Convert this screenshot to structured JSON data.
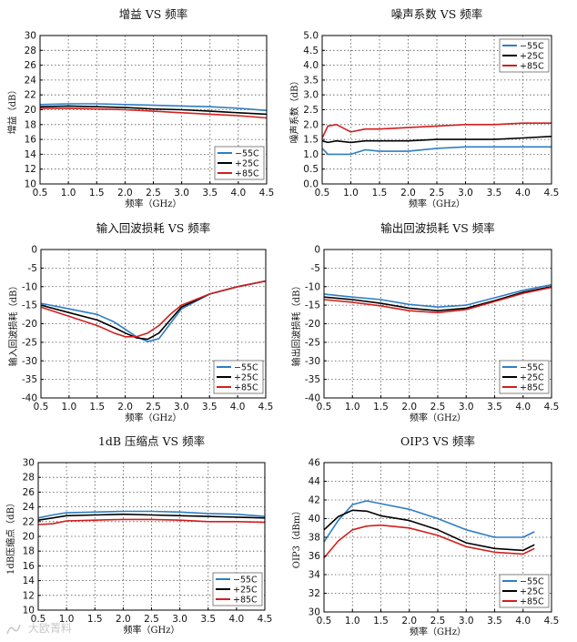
{
  "watermark": "大欧菁料",
  "legend_names": [
    "−55C",
    "+25C",
    "+85C"
  ],
  "series_colors": [
    "#2e7dc5",
    "#000000",
    "#d21f1f"
  ],
  "chart_data": [
    {
      "type": "line",
      "title": "增益 VS 频率",
      "xlabel": "频率（GHz）",
      "ylabel": "增益（dB）",
      "xlim": [
        0.5,
        4.5
      ],
      "ylim": [
        10,
        30
      ],
      "xticks": [
        "0.5",
        "1.0",
        "1.5",
        "2.0",
        "2.5",
        "3.0",
        "3.5",
        "4.0",
        "4.5"
      ],
      "yticks": [
        "10",
        "12",
        "14",
        "16",
        "18",
        "20",
        "22",
        "24",
        "26",
        "28",
        "30"
      ],
      "grid": true,
      "legend": "bottom-right",
      "x": [
        0.5,
        1.0,
        1.5,
        2.0,
        2.5,
        3.0,
        3.5,
        4.0,
        4.5
      ],
      "series": [
        {
          "name": "−55C",
          "values": [
            20.7,
            20.8,
            20.8,
            20.7,
            20.6,
            20.5,
            20.4,
            20.2,
            19.9
          ]
        },
        {
          "name": "+25C",
          "values": [
            20.4,
            20.5,
            20.4,
            20.3,
            20.1,
            20.0,
            19.8,
            19.6,
            19.4
          ]
        },
        {
          "name": "+85C",
          "values": [
            20.2,
            20.2,
            20.1,
            20.0,
            19.8,
            19.6,
            19.4,
            19.2,
            18.9
          ]
        }
      ]
    },
    {
      "type": "line",
      "title": "噪声系数 VS 频率",
      "xlabel": "频率（GHz）",
      "ylabel": "噪声系数（dB）",
      "xlim": [
        0.5,
        4.5
      ],
      "ylim": [
        0.0,
        5.0
      ],
      "xticks": [
        "0.5",
        "1.0",
        "1.5",
        "2.0",
        "2.5",
        "3.0",
        "3.5",
        "4.0",
        "4.5"
      ],
      "yticks": [
        "0.0",
        "0.5",
        "1.0",
        "1.5",
        "2.0",
        "2.5",
        "3.0",
        "3.5",
        "4.0",
        "4.5",
        "5.0"
      ],
      "grid": true,
      "legend": "top-right",
      "x": [
        0.5,
        0.6,
        0.75,
        1.0,
        1.25,
        1.5,
        2.0,
        2.5,
        3.0,
        3.5,
        4.0,
        4.5
      ],
      "series": [
        {
          "name": "−55C",
          "values": [
            1.2,
            1.0,
            1.0,
            1.0,
            1.15,
            1.1,
            1.1,
            1.2,
            1.25,
            1.25,
            1.25,
            1.25
          ]
        },
        {
          "name": "+25C",
          "values": [
            1.45,
            1.4,
            1.45,
            1.4,
            1.45,
            1.45,
            1.45,
            1.5,
            1.5,
            1.5,
            1.55,
            1.6
          ]
        },
        {
          "name": "+85C",
          "values": [
            1.55,
            1.95,
            2.0,
            1.75,
            1.85,
            1.85,
            1.9,
            1.95,
            2.0,
            2.0,
            2.05,
            2.05
          ]
        }
      ]
    },
    {
      "type": "line",
      "title": "输入回波损耗 VS 频率",
      "xlabel": "频率（GHz）",
      "ylabel": "输入回波损耗（dB）",
      "xlim": [
        0.5,
        4.5
      ],
      "ylim": [
        -40,
        0
      ],
      "xticks": [
        "0.5",
        "1.0",
        "1.5",
        "2.0",
        "2.5",
        "3.0",
        "3.5",
        "4.0",
        "4.5"
      ],
      "yticks": [
        "-40",
        "-35",
        "-30",
        "-25",
        "-20",
        "-15",
        "-10",
        "-5",
        "0"
      ],
      "grid": true,
      "legend": "bottom-right",
      "x": [
        0.5,
        1.0,
        1.5,
        1.8,
        2.0,
        2.2,
        2.4,
        2.6,
        2.8,
        3.0,
        3.5,
        4.0,
        4.5
      ],
      "series": [
        {
          "name": "−55C",
          "values": [
            -14.5,
            -16.0,
            -17.5,
            -19.5,
            -21.5,
            -23.5,
            -24.8,
            -24.0,
            -20.0,
            -16.0,
            -12.0,
            -10.0,
            -8.5
          ]
        },
        {
          "name": "+25C",
          "values": [
            -15.0,
            -17.0,
            -19.0,
            -21.0,
            -22.5,
            -23.8,
            -24.2,
            -22.5,
            -19.0,
            -15.5,
            -12.0,
            -10.0,
            -8.5
          ]
        },
        {
          "name": "+85C",
          "values": [
            -15.5,
            -18.0,
            -20.5,
            -22.5,
            -23.5,
            -23.5,
            -22.5,
            -20.5,
            -17.5,
            -15.0,
            -12.0,
            -10.0,
            -8.5
          ]
        }
      ]
    },
    {
      "type": "line",
      "title": "输出回波损耗 VS 频率",
      "xlabel": "频率（GHz）",
      "ylabel": "输出回波损耗（dB）",
      "xlim": [
        0.5,
        4.5
      ],
      "ylim": [
        -40,
        0
      ],
      "xticks": [
        "0.5",
        "1.0",
        "1.5",
        "2.0",
        "2.5",
        "3.0",
        "3.5",
        "4.0",
        "4.5"
      ],
      "yticks": [
        "-40",
        "-35",
        "-30",
        "-25",
        "-20",
        "-15",
        "-10",
        "-5",
        "0"
      ],
      "grid": true,
      "legend": "bottom-right",
      "x": [
        0.5,
        1.0,
        1.5,
        2.0,
        2.5,
        3.0,
        3.5,
        4.0,
        4.5
      ],
      "series": [
        {
          "name": "−55C",
          "values": [
            -12.0,
            -12.8,
            -13.5,
            -14.8,
            -15.5,
            -15.0,
            -13.0,
            -11.0,
            -9.5
          ]
        },
        {
          "name": "+25C",
          "values": [
            -12.8,
            -13.5,
            -14.5,
            -15.8,
            -16.5,
            -15.8,
            -13.8,
            -11.5,
            -10.0
          ]
        },
        {
          "name": "+85C",
          "values": [
            -13.5,
            -14.2,
            -15.2,
            -16.5,
            -17.0,
            -16.2,
            -14.0,
            -11.8,
            -10.2
          ]
        }
      ]
    },
    {
      "type": "line",
      "title": "1dB 压缩点 VS 频率",
      "xlabel": "频率（GHz）",
      "ylabel": "1dB压缩点（dB）",
      "xlim": [
        0.5,
        4.5
      ],
      "ylim": [
        10,
        30
      ],
      "xticks": [
        "0.5",
        "1.0",
        "1.5",
        "2.0",
        "2.5",
        "3.0",
        "3.5",
        "4.0",
        "4.5"
      ],
      "yticks": [
        "10",
        "12",
        "14",
        "16",
        "18",
        "20",
        "22",
        "24",
        "26",
        "28",
        "30"
      ],
      "grid": true,
      "legend": "bottom-right",
      "x": [
        0.5,
        0.75,
        1.0,
        1.5,
        2.0,
        2.5,
        3.0,
        3.5,
        4.0,
        4.5
      ],
      "series": [
        {
          "name": "−55C",
          "values": [
            22.5,
            22.9,
            23.2,
            23.3,
            23.4,
            23.4,
            23.3,
            23.1,
            23.0,
            22.7
          ]
        },
        {
          "name": "+25C",
          "values": [
            22.2,
            22.5,
            22.8,
            22.9,
            23.0,
            22.9,
            22.8,
            22.7,
            22.6,
            22.5
          ]
        },
        {
          "name": "+85C",
          "values": [
            21.6,
            21.7,
            22.1,
            22.2,
            22.3,
            22.3,
            22.2,
            22.0,
            22.0,
            21.9
          ]
        }
      ]
    },
    {
      "type": "line",
      "title": "OIP3 VS 频率",
      "xlabel": "频率（GHz）",
      "ylabel": "OIP3（dBm）",
      "xlim": [
        0.5,
        4.5
      ],
      "ylim": [
        30,
        46
      ],
      "xticks": [
        "0.5",
        "1.0",
        "1.5",
        "2.0",
        "2.5",
        "3.0",
        "3.5",
        "4.0",
        "4.5"
      ],
      "yticks": [
        "30",
        "32",
        "34",
        "36",
        "38",
        "40",
        "42",
        "44",
        "46"
      ],
      "grid": true,
      "legend": "bottom-right",
      "x": [
        0.5,
        0.75,
        1.0,
        1.25,
        1.5,
        2.0,
        2.5,
        3.0,
        3.5,
        4.0,
        4.2
      ],
      "series": [
        {
          "name": "−55C",
          "values": [
            37.5,
            39.8,
            41.5,
            41.9,
            41.6,
            41.0,
            40.0,
            38.8,
            38.0,
            38.0,
            38.6
          ]
        },
        {
          "name": "+25C",
          "values": [
            38.8,
            40.2,
            40.9,
            40.8,
            40.3,
            39.8,
            38.8,
            37.4,
            36.8,
            36.6,
            37.2
          ]
        },
        {
          "name": "+85C",
          "values": [
            35.8,
            37.6,
            38.8,
            39.2,
            39.3,
            39.0,
            38.2,
            37.0,
            36.4,
            36.2,
            36.8
          ]
        }
      ]
    }
  ]
}
